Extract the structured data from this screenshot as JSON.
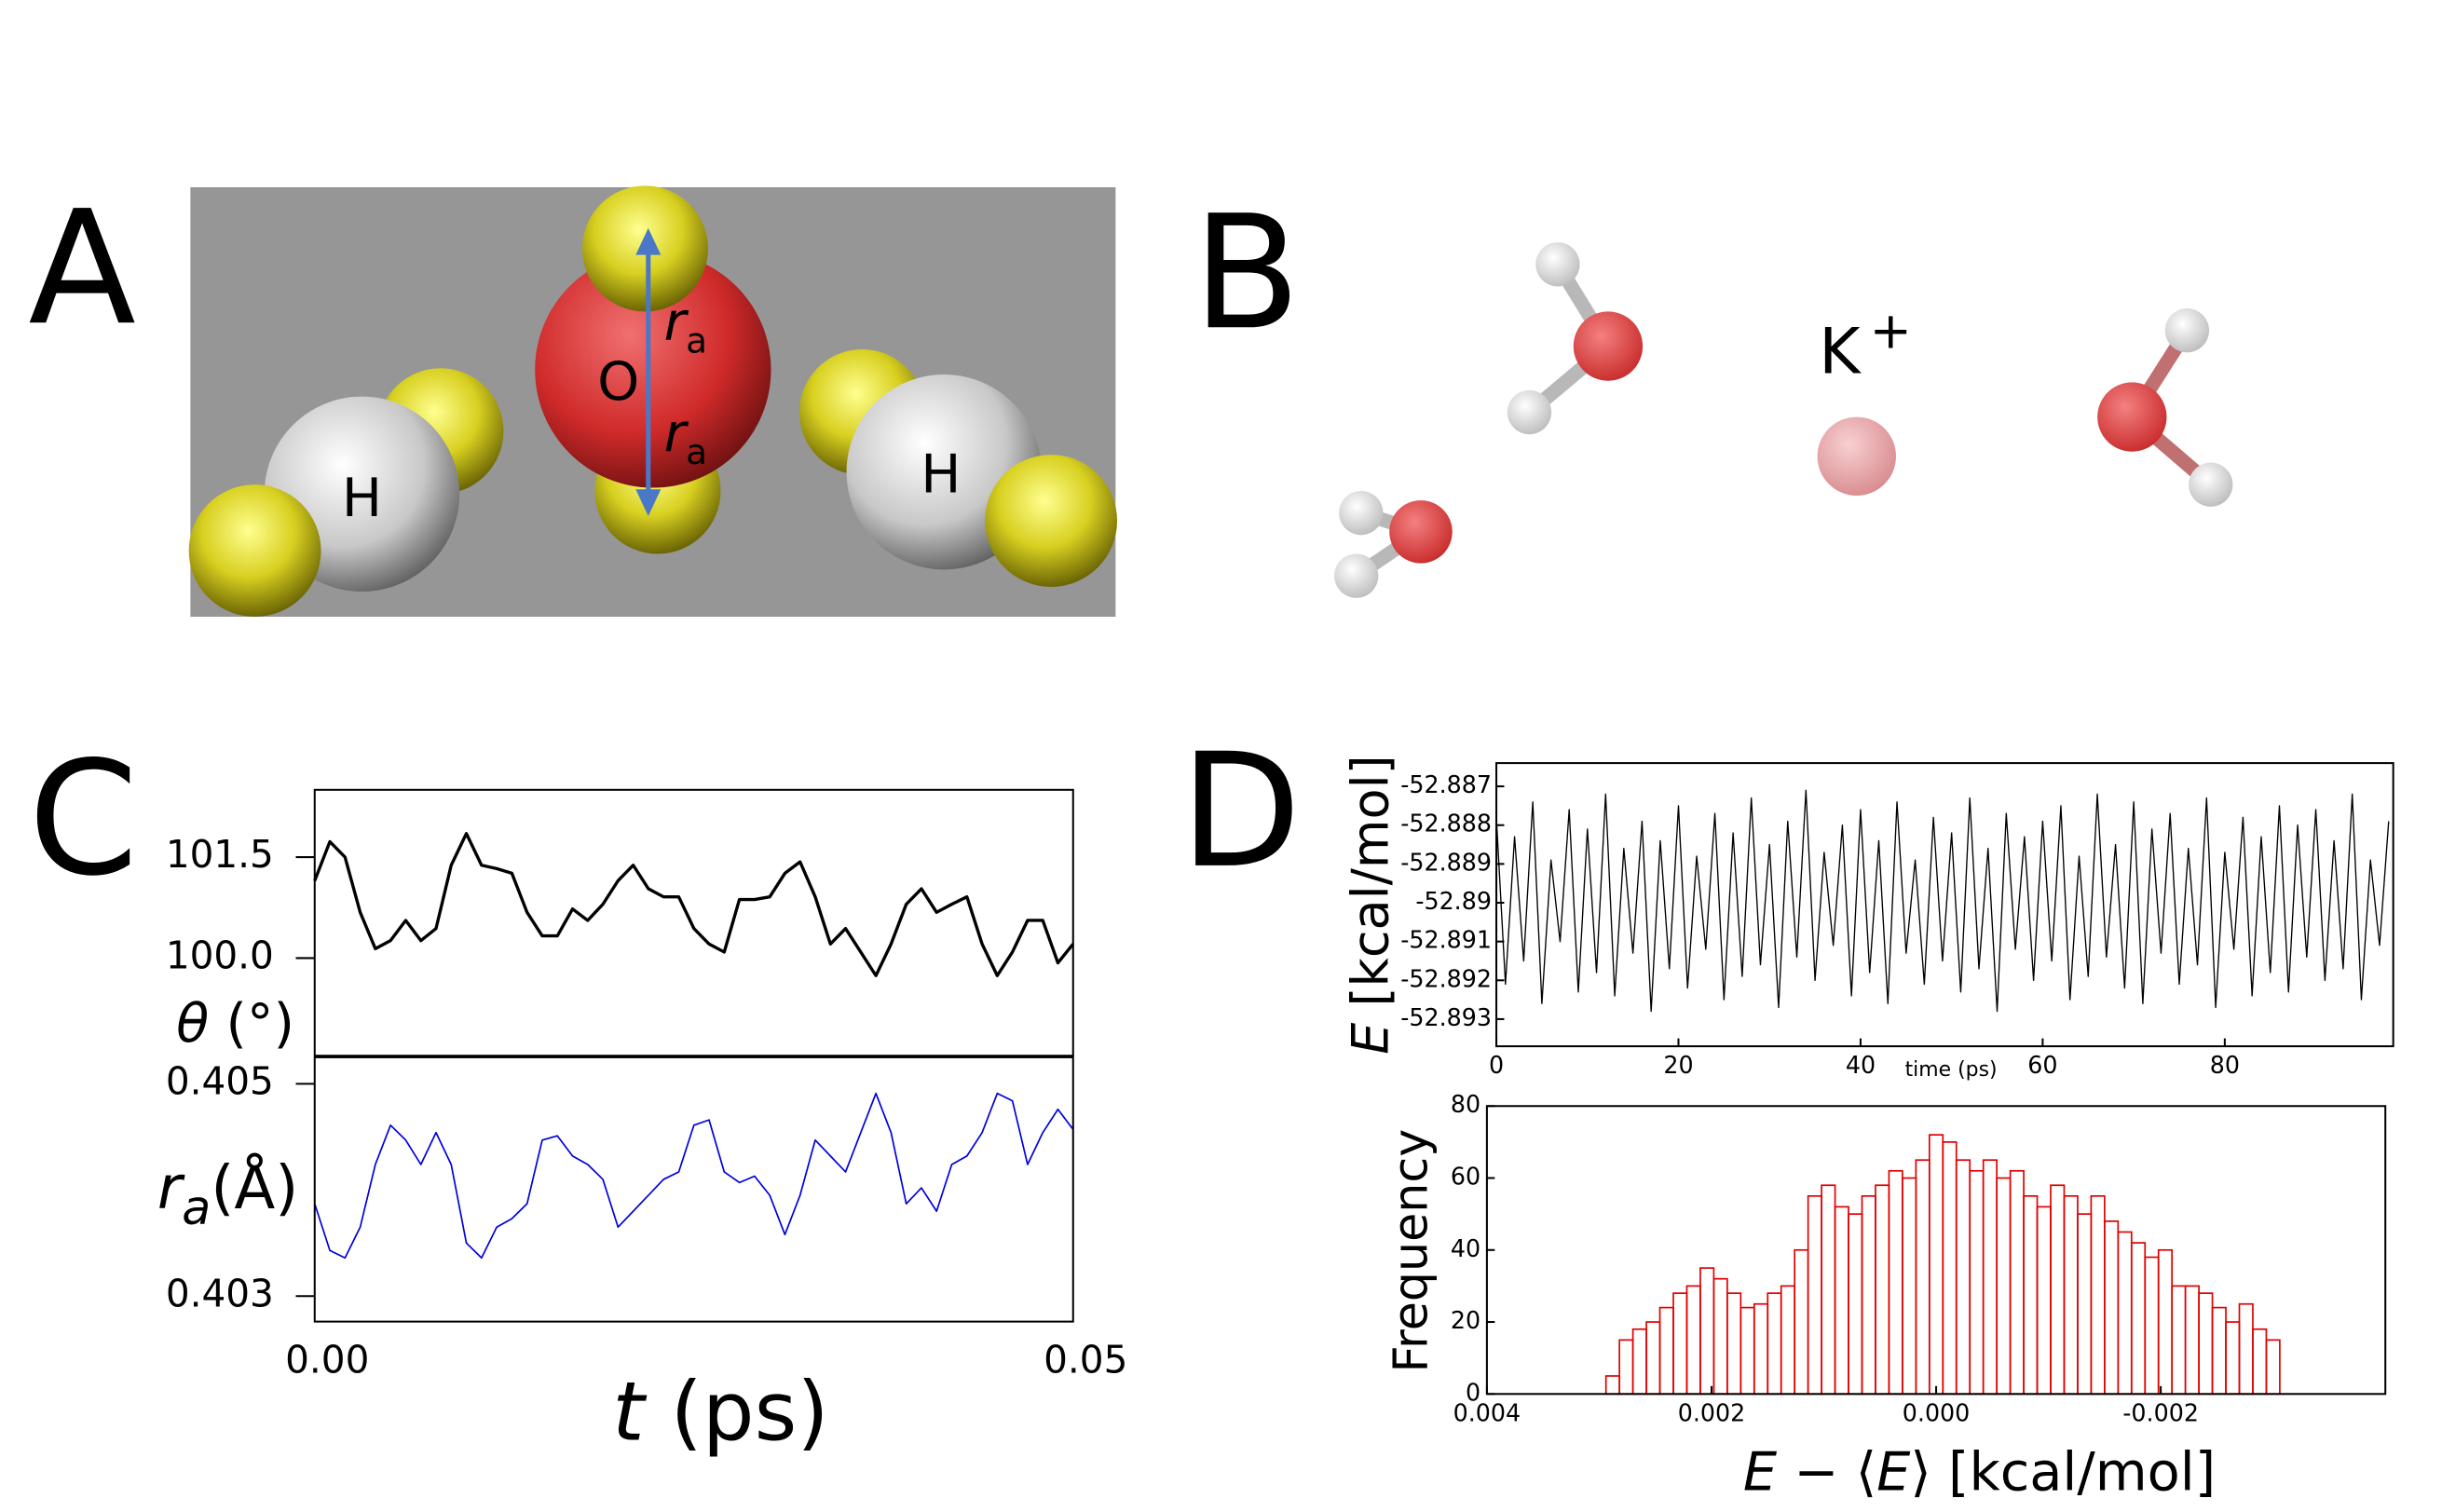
{
  "panel_labels": [
    "A",
    "B",
    "C",
    "D"
  ],
  "panel_a": {
    "atoms": [
      "H",
      "O",
      "H"
    ],
    "distance": [
      "r",
      "a"
    ]
  },
  "panel_b": {
    "ion": "K",
    "charge": "+"
  },
  "chart_data": [
    {
      "type": "line",
      "ylabel": [
        "θ",
        " (°)"
      ],
      "xlim": [
        0,
        0.05
      ],
      "ylim": [
        98.55,
        102.5
      ],
      "yticks": [
        101.5,
        {
          "value": 100,
          "label": "100.0"
        }
      ],
      "x": [
        0,
        0.001,
        0.002,
        0.003,
        0.004,
        0.005,
        0.006,
        0.007,
        0.008,
        0.009,
        0.01,
        0.011,
        0.012,
        0.013,
        0.014,
        0.015,
        0.016,
        0.017,
        0.018,
        0.019,
        0.02,
        0.021,
        0.022,
        0.023,
        0.024,
        0.025,
        0.026,
        0.027,
        0.028,
        0.029,
        0.03,
        0.031,
        0.032,
        0.033,
        0.034,
        0.035,
        0.036,
        0.037,
        0.038,
        0.039,
        0.04,
        0.041,
        0.042,
        0.043,
        0.044,
        0.045,
        0.046,
        0.047,
        0.048,
        0.049,
        0.05
      ],
      "series": [
        {
          "color": "#000000",
          "values": [
            101.15,
            101.73,
            101.5,
            100.68,
            100.14,
            100.26,
            100.56,
            100.26,
            100.44,
            101.38,
            101.85,
            101.38,
            101.33,
            101.26,
            100.68,
            100.33,
            100.33,
            100.73,
            100.56,
            100.8,
            101.15,
            101.38,
            101.03,
            100.91,
            100.91,
            100.44,
            100.21,
            100.09,
            100.87,
            100.87,
            100.91,
            101.26,
            101.43,
            100.91,
            100.21,
            100.44,
            100.09,
            99.74,
            100.21,
            100.8,
            101.03,
            100.68,
            100.8,
            100.91,
            100.21,
            99.74,
            100.09,
            100.56,
            100.56,
            99.93,
            100.21
          ]
        }
      ]
    },
    {
      "type": "line",
      "ylabel": [
        "r",
        "a",
        "(Å)"
      ],
      "xlabel": [
        "t",
        " (ps)"
      ],
      "xlim": [
        0,
        0.05
      ],
      "ylim": [
        0.40276,
        0.40525
      ],
      "xticks": [
        {
          "value": 0,
          "label": "0.00"
        },
        0.05
      ],
      "yticks": [
        0.405,
        0.403
      ],
      "x": [
        0,
        0.001,
        0.002,
        0.003,
        0.004,
        0.005,
        0.006,
        0.007,
        0.008,
        0.009,
        0.01,
        0.011,
        0.012,
        0.013,
        0.014,
        0.015,
        0.016,
        0.017,
        0.018,
        0.019,
        0.02,
        0.021,
        0.022,
        0.023,
        0.024,
        0.025,
        0.026,
        0.027,
        0.028,
        0.029,
        0.03,
        0.031,
        0.032,
        0.033,
        0.034,
        0.035,
        0.036,
        0.037,
        0.038,
        0.039,
        0.04,
        0.041,
        0.042,
        0.043,
        0.044,
        0.045,
        0.046,
        0.047,
        0.048,
        0.049,
        0.05
      ],
      "series": [
        {
          "color": "#0000dd",
          "values": [
            0.40387,
            0.40343,
            0.40336,
            0.40365,
            0.40424,
            0.40461,
            0.40447,
            0.40424,
            0.40454,
            0.40424,
            0.4035,
            0.40336,
            0.40365,
            0.40373,
            0.40387,
            0.40447,
            0.40451,
            0.40432,
            0.40424,
            0.4041,
            0.40365,
            0.4038,
            0.40395,
            0.4041,
            0.40417,
            0.40461,
            0.40466,
            0.40417,
            0.40407,
            0.40413,
            0.40395,
            0.40358,
            0.40395,
            0.40447,
            0.40432,
            0.40417,
            0.40454,
            0.40491,
            0.40454,
            0.40387,
            0.40402,
            0.4038,
            0.40424,
            0.40432,
            0.40454,
            0.40491,
            0.40484,
            0.40424,
            0.40454,
            0.40476,
            0.40457
          ]
        }
      ]
    },
    {
      "type": "line",
      "ylabel": [
        "E",
        " [kcal/mol]"
      ],
      "xlabel": "time (ps)",
      "xlim": [
        0,
        98.5
      ],
      "ylim": [
        -52.8937,
        -52.8864
      ],
      "xticks": [
        0,
        20,
        40,
        60,
        80
      ],
      "yticks": [
        -52.887,
        -52.888,
        -52.889,
        -52.89,
        -52.891,
        -52.892,
        -52.893
      ],
      "x": [
        0,
        1,
        2,
        3,
        4,
        5,
        6,
        7,
        8,
        9,
        10,
        11,
        12,
        13,
        14,
        15,
        16,
        17,
        18,
        19,
        20,
        21,
        22,
        23,
        24,
        25,
        26,
        27,
        28,
        29,
        30,
        31,
        32,
        33,
        34,
        35,
        36,
        37,
        38,
        39,
        40,
        41,
        42,
        43,
        44,
        45,
        46,
        47,
        48,
        49,
        50,
        51,
        52,
        53,
        54,
        55,
        56,
        57,
        58,
        59,
        60,
        61,
        62,
        63,
        64,
        65,
        66,
        67,
        68,
        69,
        70,
        71,
        72,
        73,
        74,
        75,
        76,
        77,
        78,
        79,
        80,
        81,
        82,
        83,
        84,
        85,
        86,
        87,
        88,
        89,
        90,
        91,
        92,
        93,
        94,
        95,
        96,
        97,
        98
      ],
      "series": [
        {
          "color": "#000000",
          "values": [
            -52.8878,
            -52.8921,
            -52.8883,
            -52.8915,
            -52.8874,
            -52.8926,
            -52.8889,
            -52.891,
            -52.8876,
            -52.8923,
            -52.8881,
            -52.8918,
            -52.8872,
            -52.8924,
            -52.8886,
            -52.8913,
            -52.8879,
            -52.8928,
            -52.8884,
            -52.8917,
            -52.8875,
            -52.8922,
            -52.8888,
            -52.8912,
            -52.8877,
            -52.8925,
            -52.8882,
            -52.8919,
            -52.8873,
            -52.8916,
            -52.8885,
            -52.8927,
            -52.8879,
            -52.8914,
            -52.8871,
            -52.892,
            -52.8887,
            -52.8911,
            -52.888,
            -52.8924,
            -52.8876,
            -52.8918,
            -52.8884,
            -52.8926,
            -52.8874,
            -52.8913,
            -52.8889,
            -52.8921,
            -52.8878,
            -52.8915,
            -52.8882,
            -52.8923,
            -52.8873,
            -52.8917,
            -52.8886,
            -52.8928,
            -52.8877,
            -52.8912,
            -52.8883,
            -52.892,
            -52.8879,
            -52.8915,
            -52.8875,
            -52.8925,
            -52.8888,
            -52.8919,
            -52.8872,
            -52.8914,
            -52.8885,
            -52.8922,
            -52.8874,
            -52.8926,
            -52.8881,
            -52.8913,
            -52.8877,
            -52.8921,
            -52.8886,
            -52.8916,
            -52.8873,
            -52.8927,
            -52.8887,
            -52.8912,
            -52.8878,
            -52.8924,
            -52.8883,
            -52.8918,
            -52.8875,
            -52.8923,
            -52.888,
            -52.8914,
            -52.8876,
            -52.892,
            -52.8884,
            -52.8917,
            -52.8872,
            -52.8925,
            -52.8889,
            -52.8911,
            -52.8879
          ]
        }
      ]
    },
    {
      "type": "histogram",
      "ylabel": "Frequency",
      "xlabel": [
        "E",
        " − ⟨",
        "E",
        "⟩ [kcal/mol]"
      ],
      "color": "#e00000",
      "xlim": [
        0.004,
        -0.004
      ],
      "ylim": [
        0,
        80
      ],
      "xticks": [
        0.004,
        0.002,
        {
          "value": 0,
          "label": "0.000"
        },
        -0.002
      ],
      "yticks": [
        0,
        20,
        40,
        60,
        80
      ],
      "bins": [
        0.00294,
        0.00282,
        0.0027,
        0.00258,
        0.00246,
        0.00234,
        0.00222,
        0.0021,
        0.00198,
        0.00186,
        0.00174,
        0.00162,
        0.0015,
        0.00138,
        0.00126,
        0.00114,
        0.00102,
        0.0009,
        0.00078,
        0.00066,
        0.00054,
        0.00042,
        0.0003,
        0.00018,
        6e-05,
        -6e-05,
        -0.00018,
        -0.0003,
        -0.00042,
        -0.00054,
        -0.00066,
        -0.00078,
        -0.0009,
        -0.00102,
        -0.00114,
        -0.00126,
        -0.00138,
        -0.0015,
        -0.00162,
        -0.00174,
        -0.00186,
        -0.00198,
        -0.0021,
        -0.00222,
        -0.00234,
        -0.00246,
        -0.00258,
        -0.0027,
        -0.00282,
        -0.00294,
        -0.00306
      ],
      "values": [
        5,
        15,
        18,
        20,
        24,
        28,
        30,
        35,
        32,
        28,
        24,
        25,
        28,
        30,
        40,
        55,
        58,
        52,
        50,
        55,
        58,
        62,
        60,
        65,
        72,
        70,
        65,
        62,
        65,
        60,
        62,
        55,
        52,
        58,
        55,
        50,
        55,
        48,
        45,
        42,
        38,
        40,
        30,
        30,
        28,
        24,
        20,
        25,
        18,
        15
      ]
    }
  ]
}
